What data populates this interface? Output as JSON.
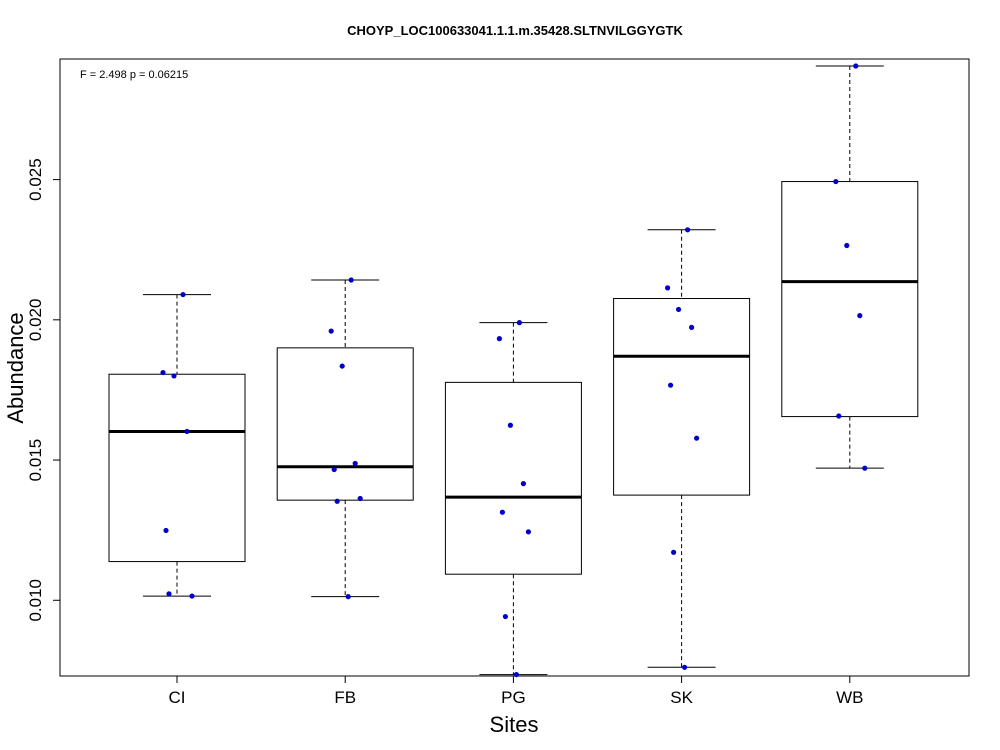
{
  "chart_data": {
    "type": "box",
    "title": "CHOYP_LOC100633041.1.1.m.35428.SLTNVILGGYGTK",
    "annotation": "F = 2.498 p = 0.06215",
    "xlabel": "Sites",
    "ylabel": "Abundance",
    "ylim": [
      0.0073,
      0.0293
    ],
    "yticks": [
      0.01,
      0.015,
      0.02,
      0.025
    ],
    "ytick_labels": [
      "0.010",
      "0.015",
      "0.020",
      "0.025"
    ],
    "categories": [
      "CI",
      "FB",
      "PG",
      "SK",
      "WB"
    ],
    "grid": false,
    "colors": {
      "points": "#0000cc",
      "median": "#000000",
      "box": "#000000"
    },
    "boxes": [
      {
        "category": "CI",
        "whisker_low": 0.01015,
        "q1": 0.01138,
        "median": 0.01602,
        "q3": 0.01806,
        "whisker_high": 0.0209,
        "points": [
          0.0209,
          0.01812,
          0.018,
          0.01602,
          0.01249,
          0.01015,
          0.01023
        ]
      },
      {
        "category": "FB",
        "whisker_low": 0.01013,
        "q1": 0.01357,
        "median": 0.01476,
        "q3": 0.019,
        "whisker_high": 0.02142,
        "points": [
          0.02142,
          0.0196,
          0.01835,
          0.01488,
          0.01466,
          0.01363,
          0.01353,
          0.01013
        ]
      },
      {
        "category": "PG",
        "whisker_low": 0.00735,
        "q1": 0.01093,
        "median": 0.01368,
        "q3": 0.01777,
        "whisker_high": 0.0199,
        "points": [
          0.0199,
          0.01933,
          0.01624,
          0.01416,
          0.01314,
          0.01244,
          0.00942,
          0.00735
        ]
      },
      {
        "category": "SK",
        "whisker_low": 0.00761,
        "q1": 0.01375,
        "median": 0.0187,
        "q3": 0.02076,
        "whisker_high": 0.02321,
        "points": [
          0.02321,
          0.02114,
          0.02037,
          0.01973,
          0.01767,
          0.01578,
          0.01171,
          0.00761
        ]
      },
      {
        "category": "WB",
        "whisker_low": 0.01471,
        "q1": 0.01655,
        "median": 0.02136,
        "q3": 0.02493,
        "whisker_high": 0.02905,
        "points": [
          0.02905,
          0.02493,
          0.02265,
          0.02015,
          0.01657,
          0.01471
        ]
      }
    ]
  }
}
